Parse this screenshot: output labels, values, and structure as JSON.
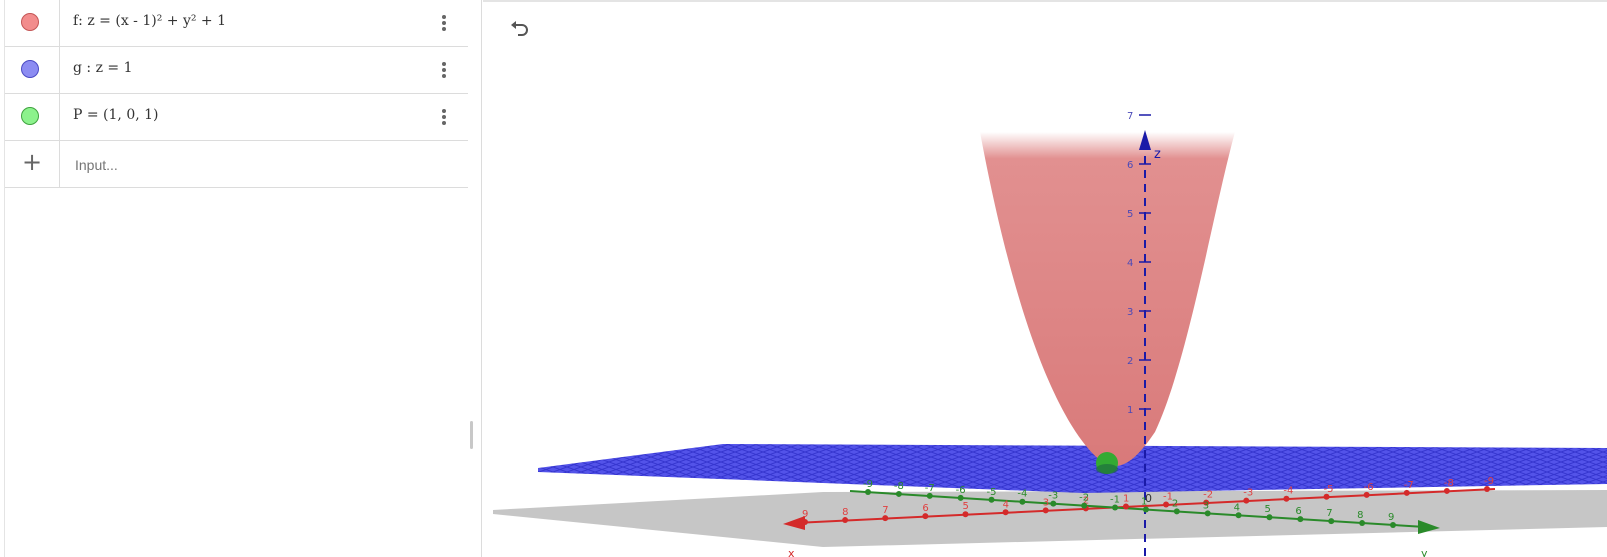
{
  "algebra": {
    "rows": [
      {
        "name": "f",
        "label": "f: z = (x - 1)² + y² + 1",
        "color": "#f28d8d",
        "border": "#c45656"
      },
      {
        "name": "g",
        "label": "g : z = 1",
        "color": "#8c8cf2",
        "border": "#4a4ac4"
      },
      {
        "name": "P",
        "label": "P = (1, 0, 1)",
        "color": "#8cf28c",
        "border": "#3fa33f"
      }
    ],
    "input_placeholder": "Input..."
  },
  "view3d": {
    "undo_icon": "undo-icon",
    "z_axis_label": "z",
    "x_axis_label": "x",
    "y_axis_label": "y",
    "z_ticks": [
      "1",
      "2",
      "3",
      "4",
      "5",
      "6",
      "7"
    ],
    "x_ticks": [
      "9",
      "8",
      "7",
      "6",
      "5",
      "4",
      "3",
      "2",
      "1",
      "-1",
      "-2",
      "-3",
      "-4",
      "-5",
      "-6",
      "-7",
      "-8",
      "-9"
    ],
    "y_ticks": [
      "-9",
      "-8",
      "-7",
      "-6",
      "-5",
      "-4",
      "-3",
      "-2",
      "-1",
      "1",
      "2",
      "3",
      "4",
      "5",
      "6",
      "7",
      "8",
      "9"
    ],
    "origin_label": "0",
    "colors": {
      "surface": "#e08a8a",
      "plane": "#3333dd",
      "x_axis": "#d42a2a",
      "y_axis": "#2a8a2a",
      "z_axis": "#1a1aa8",
      "point": "#33aa33"
    }
  }
}
